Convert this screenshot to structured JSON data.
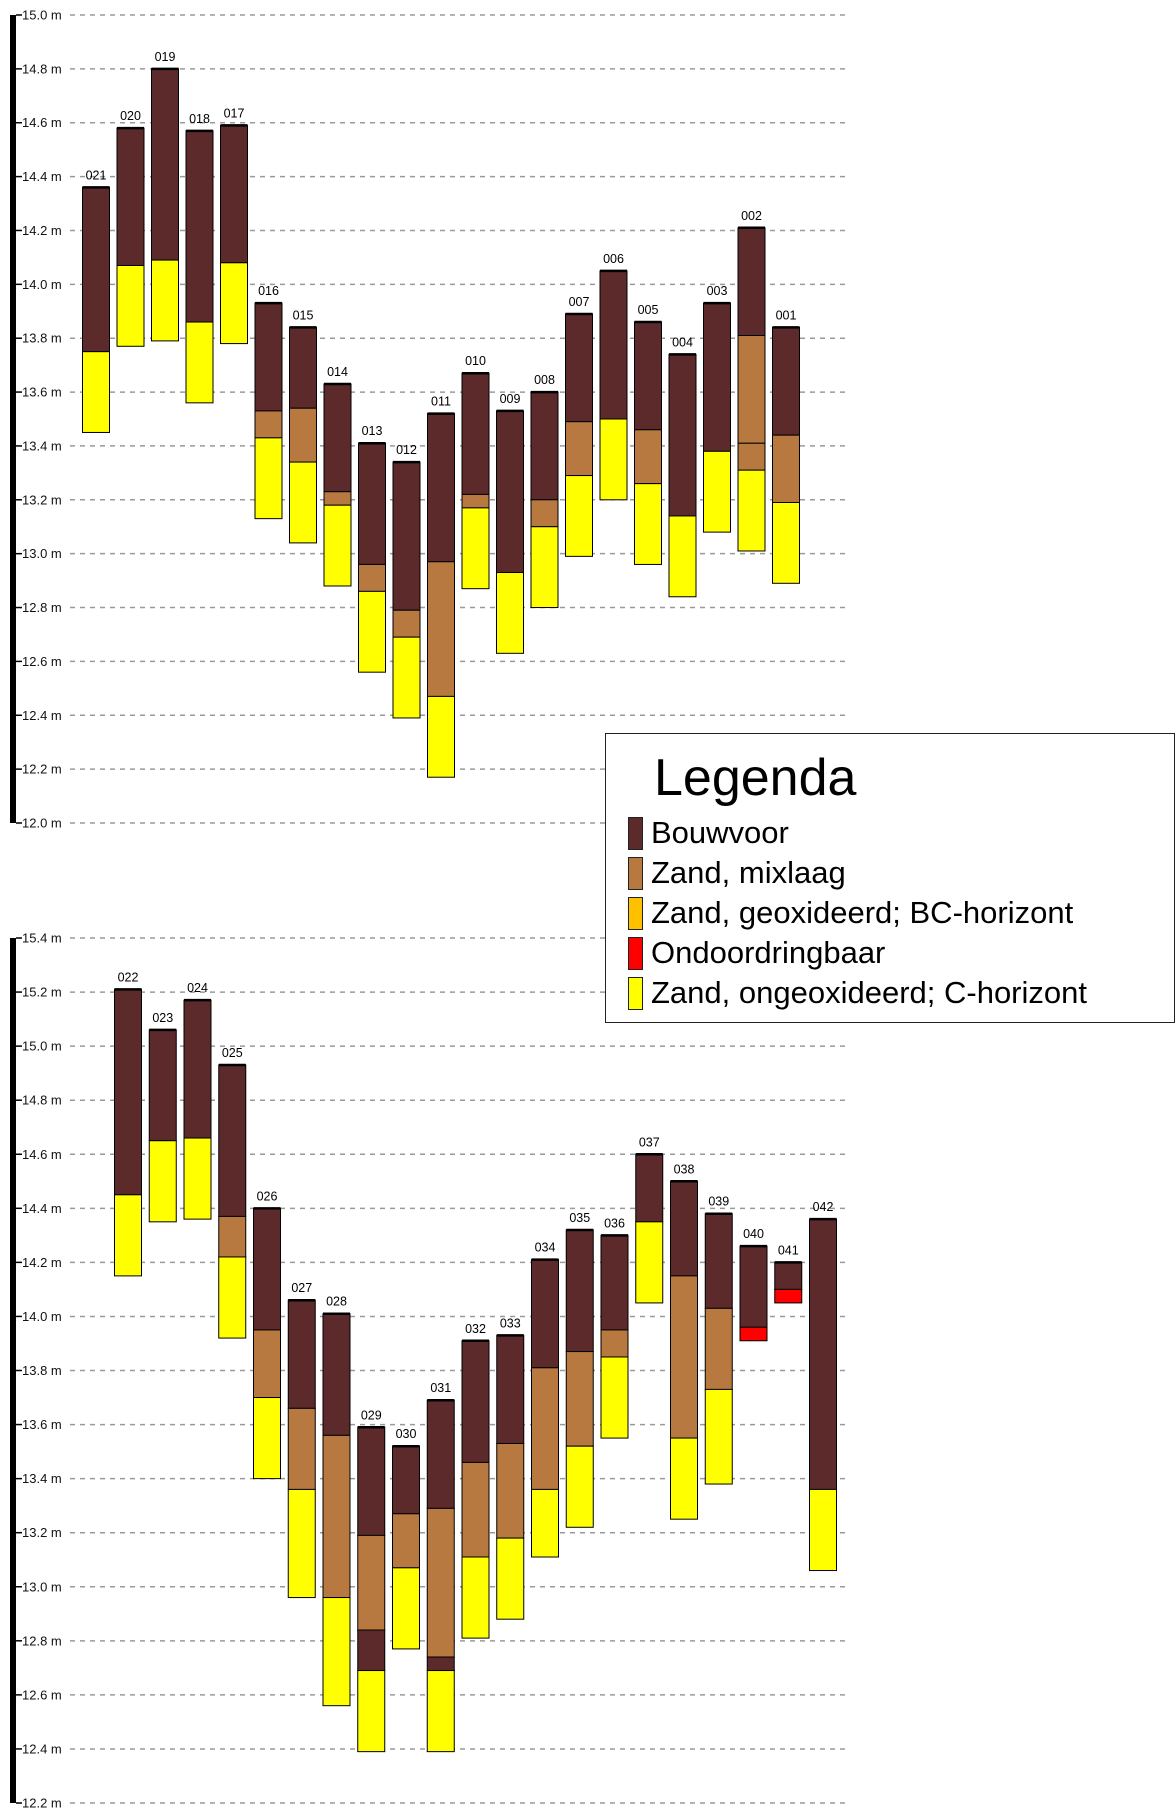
{
  "legend": {
    "title": "Legenda",
    "items": [
      {
        "key": "bouwvoor",
        "label": "Bouwvoor",
        "color": "#5c2a2a"
      },
      {
        "key": "mix",
        "label": "Zand, mixlaag",
        "color": "#b87940"
      },
      {
        "key": "geox",
        "label": "Zand, geoxideerd; BC-horizont",
        "color": "#ffc000"
      },
      {
        "key": "ondoor",
        "label": "Ondoordringbaar",
        "color": "#ff0000"
      },
      {
        "key": "onge",
        "label": "Zand, ongeoxideerd; C-horizont",
        "color": "#ffff00"
      }
    ]
  },
  "chart_data": [
    {
      "type": "bar",
      "subtype": "stacked-range",
      "unit": "m",
      "ylim": [
        12.0,
        15.0
      ],
      "yticks": [
        "15.0 m",
        "14.8 m",
        "14.6 m",
        "14.4 m",
        "14.2 m",
        "14.0 m",
        "13.8 m",
        "13.6 m",
        "13.4 m",
        "13.2 m",
        "13.0 m",
        "12.8 m",
        "12.6 m",
        "12.4 m",
        "12.2 m",
        "12.0 m"
      ],
      "grid": true,
      "categories": [
        "021",
        "020",
        "019",
        "018",
        "017",
        "016",
        "015",
        "014",
        "013",
        "012",
        "011",
        "010",
        "009",
        "008",
        "007",
        "006",
        "005",
        "004",
        "003",
        "002",
        "001"
      ],
      "profiles": [
        {
          "label": "021",
          "layers": [
            {
              "type": "bouwvoor",
              "top": 14.36,
              "bottom": 13.75
            },
            {
              "type": "onge",
              "top": 13.75,
              "bottom": 13.45
            }
          ]
        },
        {
          "label": "020",
          "layers": [
            {
              "type": "bouwvoor",
              "top": 14.58,
              "bottom": 14.07
            },
            {
              "type": "onge",
              "top": 14.07,
              "bottom": 13.77
            }
          ]
        },
        {
          "label": "019",
          "layers": [
            {
              "type": "bouwvoor",
              "top": 14.8,
              "bottom": 14.09
            },
            {
              "type": "onge",
              "top": 14.09,
              "bottom": 13.79
            }
          ]
        },
        {
          "label": "018",
          "layers": [
            {
              "type": "bouwvoor",
              "top": 14.57,
              "bottom": 13.86
            },
            {
              "type": "onge",
              "top": 13.86,
              "bottom": 13.56
            }
          ]
        },
        {
          "label": "017",
          "layers": [
            {
              "type": "bouwvoor",
              "top": 14.59,
              "bottom": 14.08
            },
            {
              "type": "onge",
              "top": 14.08,
              "bottom": 13.78
            }
          ]
        },
        {
          "label": "016",
          "layers": [
            {
              "type": "bouwvoor",
              "top": 13.93,
              "bottom": 13.53
            },
            {
              "type": "mix",
              "top": 13.53,
              "bottom": 13.43
            },
            {
              "type": "onge",
              "top": 13.43,
              "bottom": 13.13
            }
          ]
        },
        {
          "label": "015",
          "layers": [
            {
              "type": "bouwvoor",
              "top": 13.84,
              "bottom": 13.54
            },
            {
              "type": "mix",
              "top": 13.54,
              "bottom": 13.34
            },
            {
              "type": "onge",
              "top": 13.34,
              "bottom": 13.04
            }
          ]
        },
        {
          "label": "014",
          "layers": [
            {
              "type": "bouwvoor",
              "top": 13.63,
              "bottom": 13.23
            },
            {
              "type": "mix",
              "top": 13.23,
              "bottom": 13.18
            },
            {
              "type": "onge",
              "top": 13.18,
              "bottom": 12.88
            }
          ]
        },
        {
          "label": "013",
          "layers": [
            {
              "type": "bouwvoor",
              "top": 13.41,
              "bottom": 12.96
            },
            {
              "type": "mix",
              "top": 12.96,
              "bottom": 12.86
            },
            {
              "type": "onge",
              "top": 12.86,
              "bottom": 12.56
            }
          ]
        },
        {
          "label": "012",
          "layers": [
            {
              "type": "bouwvoor",
              "top": 13.34,
              "bottom": 12.79
            },
            {
              "type": "mix",
              "top": 12.79,
              "bottom": 12.69
            },
            {
              "type": "onge",
              "top": 12.69,
              "bottom": 12.39
            }
          ]
        },
        {
          "label": "011",
          "layers": [
            {
              "type": "bouwvoor",
              "top": 13.52,
              "bottom": 12.97
            },
            {
              "type": "mix",
              "top": 12.97,
              "bottom": 12.47
            },
            {
              "type": "onge",
              "top": 12.47,
              "bottom": 12.17
            }
          ]
        },
        {
          "label": "010",
          "layers": [
            {
              "type": "bouwvoor",
              "top": 13.67,
              "bottom": 13.22
            },
            {
              "type": "mix",
              "top": 13.22,
              "bottom": 13.17
            },
            {
              "type": "onge",
              "top": 13.17,
              "bottom": 12.87
            }
          ]
        },
        {
          "label": "009",
          "layers": [
            {
              "type": "bouwvoor",
              "top": 13.53,
              "bottom": 12.93
            },
            {
              "type": "onge",
              "top": 12.93,
              "bottom": 12.63
            }
          ]
        },
        {
          "label": "008",
          "layers": [
            {
              "type": "bouwvoor",
              "top": 13.6,
              "bottom": 13.2
            },
            {
              "type": "mix",
              "top": 13.2,
              "bottom": 13.1
            },
            {
              "type": "onge",
              "top": 13.1,
              "bottom": 12.8
            }
          ]
        },
        {
          "label": "007",
          "layers": [
            {
              "type": "bouwvoor",
              "top": 13.89,
              "bottom": 13.49
            },
            {
              "type": "mix",
              "top": 13.49,
              "bottom": 13.29
            },
            {
              "type": "onge",
              "top": 13.29,
              "bottom": 12.99
            }
          ]
        },
        {
          "label": "006",
          "layers": [
            {
              "type": "bouwvoor",
              "top": 14.05,
              "bottom": 13.5
            },
            {
              "type": "onge",
              "top": 13.5,
              "bottom": 13.2
            }
          ]
        },
        {
          "label": "005",
          "layers": [
            {
              "type": "bouwvoor",
              "top": 13.86,
              "bottom": 13.46
            },
            {
              "type": "mix",
              "top": 13.46,
              "bottom": 13.26
            },
            {
              "type": "onge",
              "top": 13.26,
              "bottom": 12.96
            }
          ]
        },
        {
          "label": "004",
          "layers": [
            {
              "type": "bouwvoor",
              "top": 13.74,
              "bottom": 13.14
            },
            {
              "type": "onge",
              "top": 13.14,
              "bottom": 12.84
            }
          ]
        },
        {
          "label": "003",
          "layers": [
            {
              "type": "bouwvoor",
              "top": 13.93,
              "bottom": 13.38
            },
            {
              "type": "onge",
              "top": 13.38,
              "bottom": 13.08
            }
          ]
        },
        {
          "label": "002",
          "layers": [
            {
              "type": "bouwvoor",
              "top": 14.21,
              "bottom": 13.81
            },
            {
              "type": "mix",
              "top": 13.81,
              "bottom": 13.41
            },
            {
              "type": "mix",
              "top": 13.41,
              "bottom": 13.31
            },
            {
              "type": "onge",
              "top": 13.31,
              "bottom": 13.01
            }
          ]
        },
        {
          "label": "001",
          "layers": [
            {
              "type": "bouwvoor",
              "top": 13.84,
              "bottom": 13.44
            },
            {
              "type": "mix",
              "top": 13.44,
              "bottom": 13.19
            },
            {
              "type": "onge",
              "top": 13.19,
              "bottom": 12.89
            }
          ]
        }
      ]
    },
    {
      "type": "bar",
      "subtype": "stacked-range",
      "unit": "m",
      "ylim": [
        12.2,
        15.4
      ],
      "yticks": [
        "15.4 m",
        "15.2 m",
        "15.0 m",
        "14.8 m",
        "14.6 m",
        "14.4 m",
        "14.2 m",
        "14.0 m",
        "13.8 m",
        "13.6 m",
        "13.4 m",
        "13.2 m",
        "13.0 m",
        "12.8 m",
        "12.6 m",
        "12.4 m",
        "12.2 m"
      ],
      "grid": true,
      "categories": [
        "022",
        "023",
        "024",
        "025",
        "026",
        "027",
        "028",
        "029",
        "030",
        "031",
        "032",
        "033",
        "034",
        "035",
        "036",
        "037",
        "038",
        "039",
        "040",
        "041",
        "042"
      ],
      "profiles": [
        {
          "label": "022",
          "layers": [
            {
              "type": "bouwvoor",
              "top": 15.21,
              "bottom": 14.45
            },
            {
              "type": "onge",
              "top": 14.45,
              "bottom": 14.15
            }
          ]
        },
        {
          "label": "023",
          "layers": [
            {
              "type": "bouwvoor",
              "top": 15.06,
              "bottom": 14.65
            },
            {
              "type": "onge",
              "top": 14.65,
              "bottom": 14.35
            }
          ]
        },
        {
          "label": "024",
          "layers": [
            {
              "type": "bouwvoor",
              "top": 15.17,
              "bottom": 14.66
            },
            {
              "type": "onge",
              "top": 14.66,
              "bottom": 14.36
            }
          ]
        },
        {
          "label": "025",
          "layers": [
            {
              "type": "bouwvoor",
              "top": 14.93,
              "bottom": 14.37
            },
            {
              "type": "mix",
              "top": 14.37,
              "bottom": 14.22
            },
            {
              "type": "onge",
              "top": 14.22,
              "bottom": 13.92
            }
          ]
        },
        {
          "label": "026",
          "layers": [
            {
              "type": "bouwvoor",
              "top": 14.4,
              "bottom": 13.95
            },
            {
              "type": "mix",
              "top": 13.95,
              "bottom": 13.7
            },
            {
              "type": "onge",
              "top": 13.7,
              "bottom": 13.4
            }
          ]
        },
        {
          "label": "027",
          "layers": [
            {
              "type": "bouwvoor",
              "top": 14.06,
              "bottom": 13.66
            },
            {
              "type": "mix",
              "top": 13.66,
              "bottom": 13.36
            },
            {
              "type": "onge",
              "top": 13.36,
              "bottom": 12.96
            }
          ]
        },
        {
          "label": "028",
          "layers": [
            {
              "type": "bouwvoor",
              "top": 14.01,
              "bottom": 13.56
            },
            {
              "type": "mix",
              "top": 13.56,
              "bottom": 12.96
            },
            {
              "type": "onge",
              "top": 12.96,
              "bottom": 12.56
            }
          ]
        },
        {
          "label": "029",
          "layers": [
            {
              "type": "bouwvoor",
              "top": 13.59,
              "bottom": 13.19
            },
            {
              "type": "mix",
              "top": 13.19,
              "bottom": 12.84
            },
            {
              "type": "bouwvoor",
              "top": 12.84,
              "bottom": 12.69
            },
            {
              "type": "onge",
              "top": 12.69,
              "bottom": 12.39
            }
          ]
        },
        {
          "label": "030",
          "layers": [
            {
              "type": "bouwvoor",
              "top": 13.52,
              "bottom": 13.27
            },
            {
              "type": "mix",
              "top": 13.27,
              "bottom": 13.07
            },
            {
              "type": "onge",
              "top": 13.07,
              "bottom": 12.77
            }
          ]
        },
        {
          "label": "031",
          "layers": [
            {
              "type": "bouwvoor",
              "top": 13.69,
              "bottom": 13.29
            },
            {
              "type": "mix",
              "top": 13.29,
              "bottom": 12.74
            },
            {
              "type": "bouwvoor",
              "top": 12.74,
              "bottom": 12.69
            },
            {
              "type": "onge",
              "top": 12.69,
              "bottom": 12.39
            }
          ]
        },
        {
          "label": "032",
          "layers": [
            {
              "type": "bouwvoor",
              "top": 13.91,
              "bottom": 13.46
            },
            {
              "type": "mix",
              "top": 13.46,
              "bottom": 13.11
            },
            {
              "type": "onge",
              "top": 13.11,
              "bottom": 12.81
            }
          ]
        },
        {
          "label": "033",
          "layers": [
            {
              "type": "bouwvoor",
              "top": 13.93,
              "bottom": 13.53
            },
            {
              "type": "mix",
              "top": 13.53,
              "bottom": 13.18
            },
            {
              "type": "onge",
              "top": 13.18,
              "bottom": 12.88
            }
          ]
        },
        {
          "label": "034",
          "layers": [
            {
              "type": "bouwvoor",
              "top": 14.21,
              "bottom": 13.81
            },
            {
              "type": "mix",
              "top": 13.81,
              "bottom": 13.36
            },
            {
              "type": "onge",
              "top": 13.36,
              "bottom": 13.11
            }
          ]
        },
        {
          "label": "035",
          "layers": [
            {
              "type": "bouwvoor",
              "top": 14.32,
              "bottom": 13.87
            },
            {
              "type": "mix",
              "top": 13.87,
              "bottom": 13.52
            },
            {
              "type": "onge",
              "top": 13.52,
              "bottom": 13.22
            }
          ]
        },
        {
          "label": "036",
          "layers": [
            {
              "type": "bouwvoor",
              "top": 14.3,
              "bottom": 13.95
            },
            {
              "type": "mix",
              "top": 13.95,
              "bottom": 13.85
            },
            {
              "type": "onge",
              "top": 13.85,
              "bottom": 13.55
            }
          ]
        },
        {
          "label": "037",
          "layers": [
            {
              "type": "bouwvoor",
              "top": 14.6,
              "bottom": 14.35
            },
            {
              "type": "onge",
              "top": 14.35,
              "bottom": 14.05
            }
          ]
        },
        {
          "label": "038",
          "layers": [
            {
              "type": "bouwvoor",
              "top": 14.5,
              "bottom": 14.15
            },
            {
              "type": "mix",
              "top": 14.15,
              "bottom": 13.55
            },
            {
              "type": "onge",
              "top": 13.55,
              "bottom": 13.25
            }
          ]
        },
        {
          "label": "039",
          "layers": [
            {
              "type": "bouwvoor",
              "top": 14.38,
              "bottom": 14.03
            },
            {
              "type": "mix",
              "top": 14.03,
              "bottom": 13.73
            },
            {
              "type": "onge",
              "top": 13.73,
              "bottom": 13.38
            }
          ]
        },
        {
          "label": "040",
          "layers": [
            {
              "type": "bouwvoor",
              "top": 14.26,
              "bottom": 13.96
            },
            {
              "type": "ondoor",
              "top": 13.96,
              "bottom": 13.91
            }
          ]
        },
        {
          "label": "041",
          "layers": [
            {
              "type": "bouwvoor",
              "top": 14.2,
              "bottom": 14.1
            },
            {
              "type": "ondoor",
              "top": 14.1,
              "bottom": 14.05
            }
          ]
        },
        {
          "label": "042",
          "layers": [
            {
              "type": "bouwvoor",
              "top": 14.36,
              "bottom": 13.36
            },
            {
              "type": "onge",
              "top": 13.36,
              "bottom": 13.06
            }
          ]
        }
      ]
    }
  ]
}
